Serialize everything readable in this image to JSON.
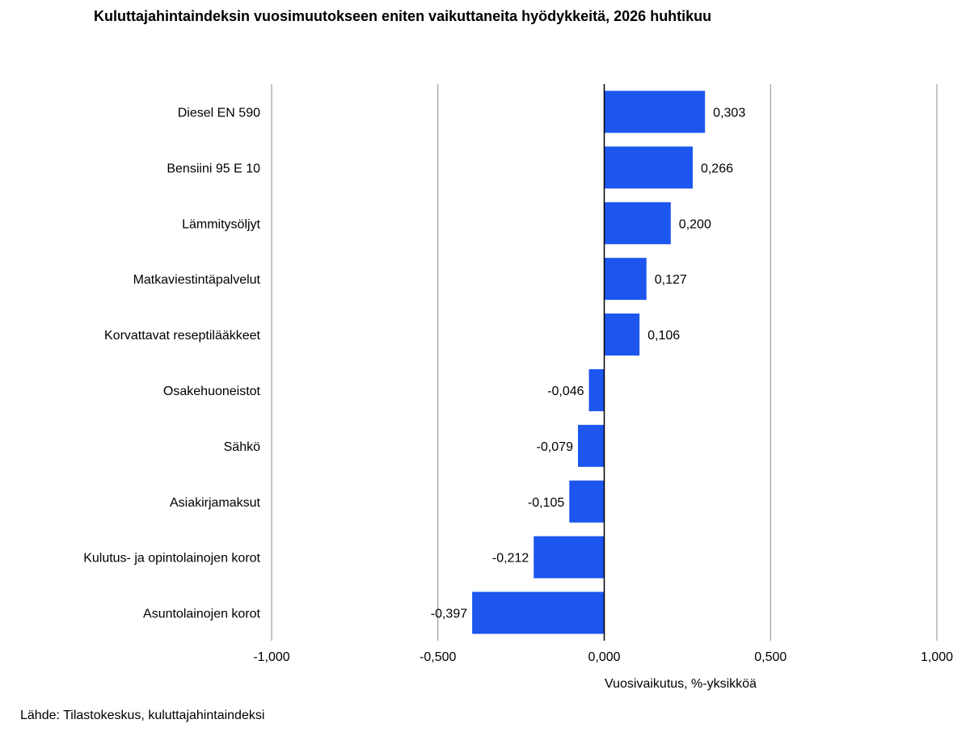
{
  "title": "Kuluttajahintaindeksin vuosimuutokseen eniten vaikuttaneita hyödykkeitä, 2026 huhtikuu",
  "source": "Lähde: Tilastokeskus, kuluttajahintaindeksi",
  "chart_data": {
    "type": "bar",
    "orientation": "horizontal",
    "categories": [
      "Diesel EN 590",
      "Bensiini 95 E 10",
      "Lämmitysöljyt",
      "Matkaviestintäpalvelut",
      "Korvattavat reseptilääkkeet",
      "Osakehuoneistot",
      "Sähkö",
      "Asiakirjamaksut",
      "Kulutus- ja opintolainojen korot",
      "Asuntolainojen korot"
    ],
    "values": [
      0.303,
      0.266,
      0.2,
      0.127,
      0.106,
      -0.046,
      -0.079,
      -0.105,
      -0.212,
      -0.397
    ],
    "value_labels": [
      "0,303",
      "0,266",
      "0,200",
      "0,127",
      "0,106",
      "-0,046",
      "-0,079",
      "-0,105",
      "-0,212",
      "-0,397"
    ],
    "xlabel": "Vuosivaikutus, %-yksikköä",
    "xlim": [
      -1.0,
      1.0
    ],
    "xticks": [
      -1.0,
      -0.5,
      0.0,
      0.5,
      1.0
    ],
    "xtick_labels": [
      "-1,000",
      "-0,500",
      "0,000",
      "0,500",
      "1,000"
    ],
    "grid": true,
    "legend": "none",
    "bar_color": "#1c56ee"
  }
}
